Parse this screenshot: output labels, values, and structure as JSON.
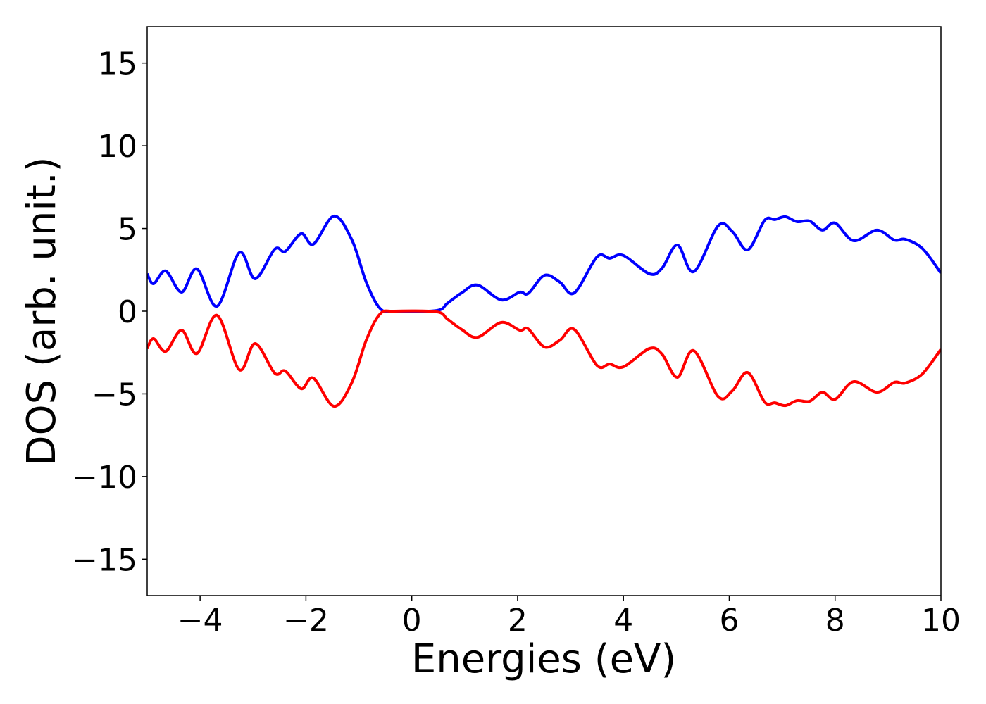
{
  "chart_data": {
    "type": "line",
    "xlabel": "Energies (eV)",
    "ylabel": "DOS (arb. unit.)",
    "xlim": [
      -5,
      10
    ],
    "ylim": [
      -17.2,
      17.2
    ],
    "xticks": [
      {
        "value": -4,
        "label": "−4"
      },
      {
        "value": -2,
        "label": "−2"
      },
      0,
      2,
      4,
      6,
      8,
      10
    ],
    "yticks": [
      {
        "value": -15,
        "label": "−15"
      },
      {
        "value": -10,
        "label": "−10"
      },
      {
        "value": -5,
        "label": "−5"
      },
      0,
      5,
      10,
      15
    ],
    "x": [
      -5,
      -4.88,
      -4.65,
      -4.35,
      -4.06,
      -3.68,
      -3.26,
      -2.96,
      -2.59,
      -2.39,
      -2.09,
      -1.86,
      -1.47,
      -1.13,
      -0.86,
      -0.6,
      -0.33,
      0.47,
      0.67,
      0.94,
      1.24,
      1.69,
      2.04,
      2.2,
      2.51,
      2.8,
      3.07,
      3.5,
      3.74,
      4.0,
      4.49,
      4.73,
      5.02,
      5.33,
      5.79,
      6.06,
      6.35,
      6.67,
      6.86,
      7.06,
      7.28,
      7.52,
      7.76,
      8.0,
      8.35,
      8.79,
      9.12,
      9.32,
      9.65,
      10.0
    ],
    "series": [
      {
        "color": "#0000ff",
        "values": [
          2.26,
          1.66,
          2.43,
          1.15,
          2.56,
          0.3,
          3.54,
          1.96,
          3.75,
          3.62,
          4.69,
          4.05,
          5.75,
          4.3,
          1.75,
          0.17,
          0,
          0.04,
          0.47,
          1.1,
          1.58,
          0.68,
          1.15,
          1.07,
          2.17,
          1.75,
          1.1,
          3.28,
          3.2,
          3.37,
          2.26,
          2.6,
          4.0,
          2.39,
          5.16,
          4.81,
          3.71,
          5.5,
          5.54,
          5.71,
          5.41,
          5.45,
          4.9,
          5.33,
          4.26,
          4.9,
          4.3,
          4.35,
          3.79,
          2.3
        ]
      },
      {
        "color": "#ff0000",
        "values": [
          -2.26,
          -1.66,
          -2.43,
          -1.15,
          -2.56,
          -0.25,
          -3.54,
          -1.96,
          -3.75,
          -3.62,
          -4.69,
          -4.05,
          -5.75,
          -4.3,
          -1.75,
          -0.17,
          0,
          -0.04,
          -0.47,
          -1.1,
          -1.58,
          -0.68,
          -1.15,
          -1.07,
          -2.17,
          -1.75,
          -1.1,
          -3.28,
          -3.2,
          -3.37,
          -2.26,
          -2.6,
          -4.0,
          -2.39,
          -5.16,
          -4.81,
          -3.71,
          -5.5,
          -5.54,
          -5.71,
          -5.41,
          -5.45,
          -4.9,
          -5.33,
          -4.26,
          -4.9,
          -4.3,
          -4.35,
          -3.79,
          -2.3
        ]
      }
    ]
  }
}
